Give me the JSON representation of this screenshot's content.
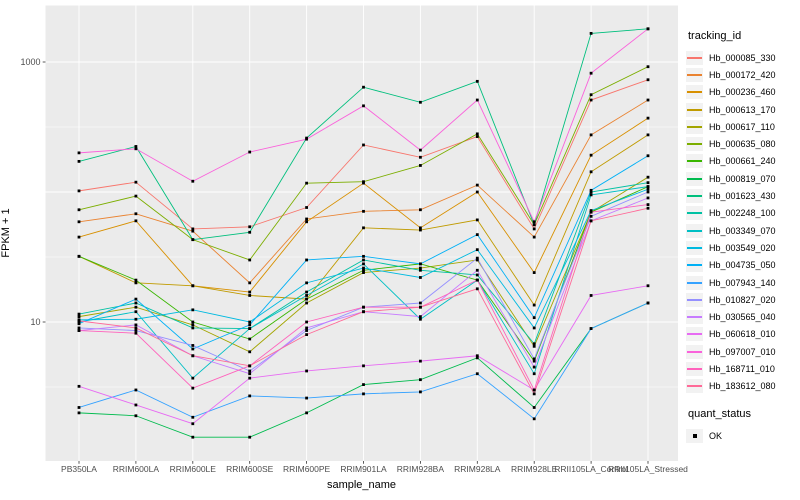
{
  "figure": {
    "background": "#FFFFFF",
    "panel_background": "#EBEBEB",
    "grid_color": "#FFFFFF",
    "tick_color": "#333333",
    "tick_label_color": "#4D4D4D",
    "point_color": "#000000"
  },
  "legend": {
    "tracking_id_title": "tracking_id",
    "quant_status_title": "quant_status",
    "quant_status_items": [
      {
        "label": "OK",
        "shape": "square",
        "color": "#000000"
      }
    ]
  },
  "chart_data": {
    "type": "line",
    "title": "",
    "xlabel": "sample_name",
    "ylabel": "FPKM + 1",
    "y_scale": "log10",
    "ylim": [
      0.9,
      2600
    ],
    "y_ticks": [
      1000,
      10
    ],
    "y_tick_labels": [
      "1000",
      "10"
    ],
    "y_major_gridlines": [
      10,
      100,
      1000
    ],
    "y_minor_gridlines": [
      3.162,
      31.62,
      316.2
    ],
    "grid": true,
    "legend_position": "right",
    "point_shape": "square",
    "categories": [
      "PB350LA",
      "RRIM600LA",
      "RRIM600LE",
      "RRIM600SE",
      "RRIM600PE",
      "RRIM901LA",
      "RRIM928BA",
      "RRIM928LA",
      "RRIM928LE",
      "RRII105LA_Control",
      "RRII105LA_Stressed"
    ],
    "series": [
      {
        "name": "Hb_000085_330",
        "color": "#F8766D",
        "values": [
          102,
          119,
          52,
          54,
          76,
          230,
          185,
          267,
          52,
          510,
          730
        ]
      },
      {
        "name": "Hb_000172_420",
        "color": "#EA8331",
        "values": [
          59,
          68,
          50,
          20,
          62,
          71,
          73,
          113,
          45,
          275,
          510
        ]
      },
      {
        "name": "Hb_000236_460",
        "color": "#D89000",
        "values": [
          45,
          60,
          19,
          17,
          59,
          117,
          53,
          100,
          24,
          192,
          370
        ]
      },
      {
        "name": "Hb_000613_170",
        "color": "#C09B00",
        "values": [
          32,
          20,
          19,
          16,
          15,
          53,
          51,
          61,
          13.5,
          143,
          275
        ]
      },
      {
        "name": "Hb_000617_110",
        "color": "#A3A500",
        "values": [
          11,
          13,
          9.5,
          5.9,
          14,
          24,
          26,
          30,
          6.5,
          70,
          130
        ]
      },
      {
        "name": "Hb_000635_080",
        "color": "#7CAE00",
        "values": [
          73,
          93,
          43,
          30,
          117,
          120,
          160,
          280,
          56,
          560,
          920
        ]
      },
      {
        "name": "Hb_000661_240",
        "color": "#39B600",
        "values": [
          32,
          21,
          10,
          7.4,
          15,
          25,
          28,
          21,
          5,
          70,
          110
        ]
      },
      {
        "name": "Hb_000819_070",
        "color": "#00BB4E",
        "values": [
          2,
          1.9,
          1.3,
          1.3,
          2,
          3.3,
          3.6,
          5.3,
          2.2,
          8.9,
          14
        ]
      },
      {
        "name": "Hb_001623_430",
        "color": "#00BF7D",
        "values": [
          172,
          224,
          43,
          49,
          260,
          640,
          490,
          710,
          56,
          1660,
          1800
        ]
      },
      {
        "name": "Hb_002248_100",
        "color": "#00C1A3",
        "values": [
          11.5,
          14,
          9,
          8.9,
          17,
          30,
          25,
          23,
          6.8,
          100,
          118
        ]
      },
      {
        "name": "Hb_003349_070",
        "color": "#00BFC4",
        "values": [
          10,
          12,
          3.7,
          8.9,
          16,
          28,
          10.5,
          21,
          4,
          95,
          110
        ]
      },
      {
        "name": "Hb_003549_020",
        "color": "#00BAE0",
        "values": [
          10.4,
          10.5,
          12.4,
          10,
          20,
          26,
          22,
          36,
          9,
          72,
          105
        ]
      },
      {
        "name": "Hb_004735_050",
        "color": "#00B0F6",
        "values": [
          9.7,
          15,
          6.2,
          9.5,
          30,
          32,
          28,
          47,
          10.8,
          103,
          190
        ]
      },
      {
        "name": "Hb_007943_140",
        "color": "#35A2FF",
        "values": [
          2.2,
          3,
          1.85,
          2.7,
          2.6,
          2.8,
          2.9,
          4,
          1.8,
          8.9,
          14
        ]
      },
      {
        "name": "Hb_010827_020",
        "color": "#9590FF",
        "values": [
          9,
          8.6,
          6.6,
          4.2,
          8.6,
          13,
          14,
          31,
          5.2,
          65,
          100
        ]
      },
      {
        "name": "Hb_030565_040",
        "color": "#C77CFF",
        "values": [
          8.6,
          9.5,
          5.5,
          4,
          9,
          12,
          11,
          25,
          4.5,
          60,
          90
        ]
      },
      {
        "name": "Hb_060618_010",
        "color": "#E76BF3",
        "values": [
          3.2,
          2.3,
          1.65,
          3.7,
          4.2,
          4.6,
          5,
          5.5,
          3,
          16,
          19
        ]
      },
      {
        "name": "Hb_097007_010",
        "color": "#FA62DB",
        "values": [
          200,
          215,
          121,
          203,
          255,
          460,
          210,
          510,
          59,
          820,
          1800
        ]
      },
      {
        "name": "Hb_168711_010",
        "color": "#FF62BC",
        "values": [
          8.6,
          8.2,
          3.1,
          4.6,
          10,
          13,
          13,
          21,
          3,
          70,
          80
        ]
      },
      {
        "name": "Hb_183612_080",
        "color": "#FF6A98",
        "values": [
          10.2,
          9,
          5.5,
          4.6,
          8,
          12,
          13,
          18,
          2.8,
          60,
          75
        ]
      }
    ]
  }
}
